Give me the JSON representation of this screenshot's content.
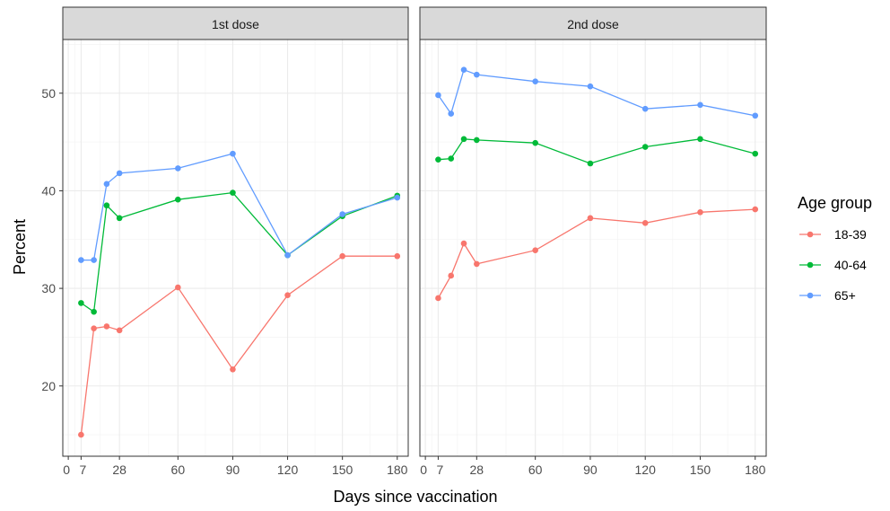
{
  "chart_data": {
    "type": "line",
    "xlabel": "Days since vaccination",
    "ylabel": "Percent",
    "xlim": [
      -3,
      186
    ],
    "ylim": [
      12.8,
      55.5
    ],
    "x_ticks": [
      0,
      7,
      28,
      60,
      90,
      120,
      150,
      180
    ],
    "y_ticks": [
      20,
      30,
      40,
      50
    ],
    "grid": true,
    "legend": {
      "title": "Age group",
      "placement": "right",
      "entries": [
        "18-39",
        "40-64",
        "65+"
      ]
    },
    "colors": {
      "18-39": "#F8766D",
      "40-64": "#00BA38",
      "65+": "#619CFF"
    },
    "panels": [
      {
        "strip": "1st dose",
        "x": [
          7,
          14,
          21,
          28,
          60,
          90,
          120,
          150,
          180
        ],
        "series": [
          {
            "name": "18-39",
            "values": [
              15.0,
              25.9,
              26.1,
              25.7,
              30.1,
              21.7,
              29.3,
              33.3,
              33.3
            ]
          },
          {
            "name": "40-64",
            "values": [
              28.5,
              27.6,
              38.5,
              37.2,
              39.1,
              39.8,
              33.4,
              37.4,
              39.5
            ]
          },
          {
            "name": "65+",
            "values": [
              32.9,
              32.9,
              40.7,
              41.8,
              42.3,
              43.8,
              33.4,
              37.6,
              39.3
            ]
          }
        ]
      },
      {
        "strip": "2nd dose",
        "x": [
          7,
          14,
          21,
          28,
          60,
          90,
          120,
          150,
          180
        ],
        "series": [
          {
            "name": "18-39",
            "values": [
              29.0,
              31.3,
              34.6,
              32.5,
              33.9,
              37.2,
              36.7,
              37.8,
              38.1
            ]
          },
          {
            "name": "40-64",
            "values": [
              43.2,
              43.3,
              45.3,
              45.2,
              44.9,
              42.8,
              44.5,
              45.3,
              43.8
            ]
          },
          {
            "name": "65+",
            "values": [
              49.8,
              47.9,
              52.4,
              51.9,
              51.2,
              50.7,
              48.4,
              48.8,
              47.7
            ]
          }
        ]
      }
    ]
  }
}
